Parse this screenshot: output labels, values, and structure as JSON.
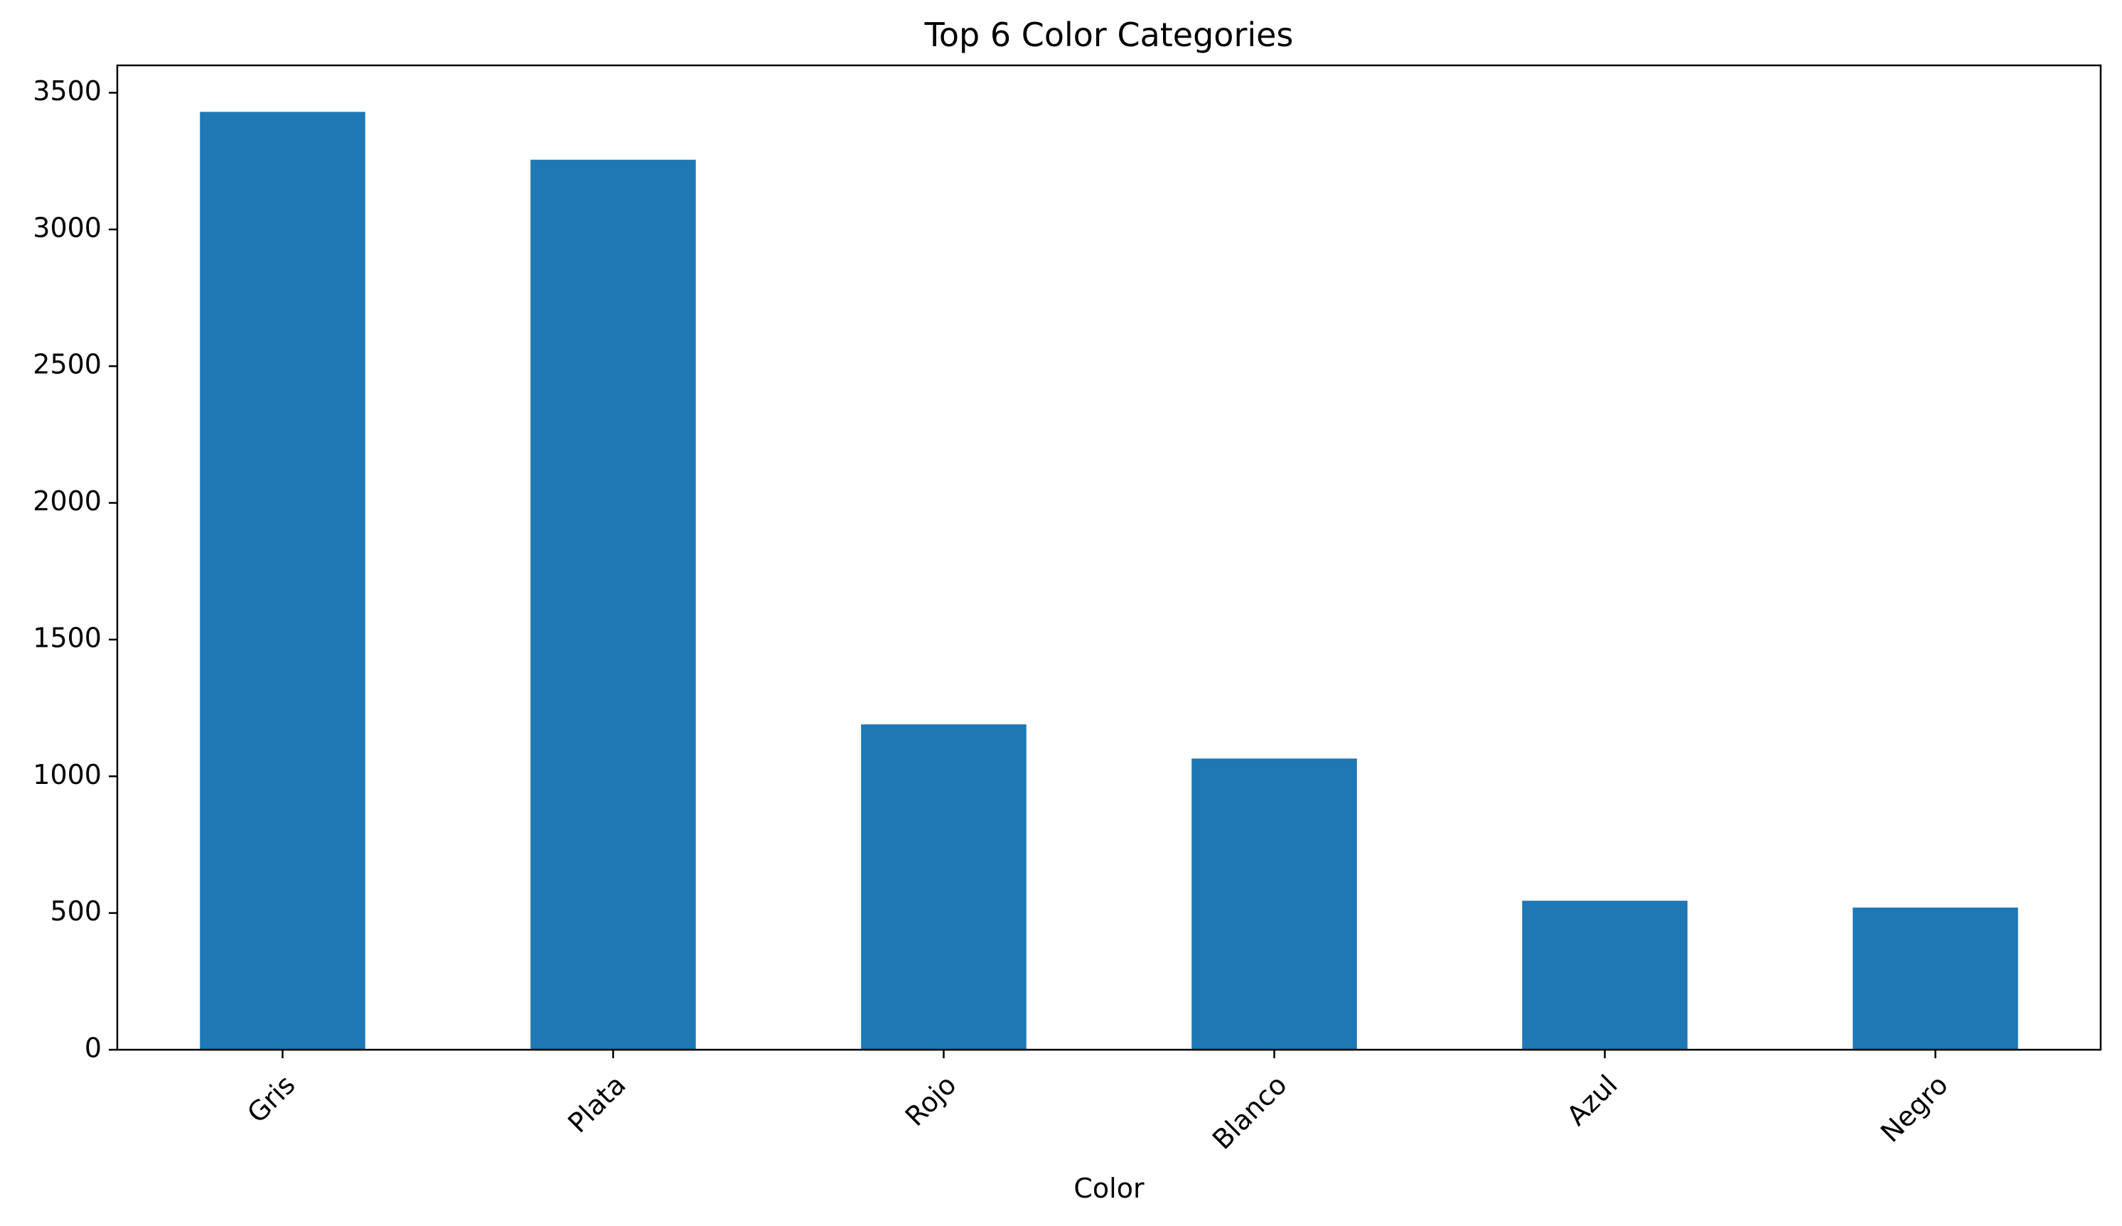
{
  "chart_data": {
    "type": "bar",
    "title": "Top 6 Color Categories",
    "xlabel": "Color",
    "ylabel": "",
    "categories": [
      "Gris",
      "Plata",
      "Rojo",
      "Blanco",
      "Azul",
      "Negro"
    ],
    "values": [
      3430,
      3255,
      1190,
      1065,
      545,
      520
    ],
    "ylim": [
      0,
      3600
    ],
    "yticks": [
      0,
      500,
      1000,
      1500,
      2000,
      2500,
      3000,
      3500
    ],
    "grid": false,
    "legend": "none",
    "bar_color": "#1f77b4"
  }
}
